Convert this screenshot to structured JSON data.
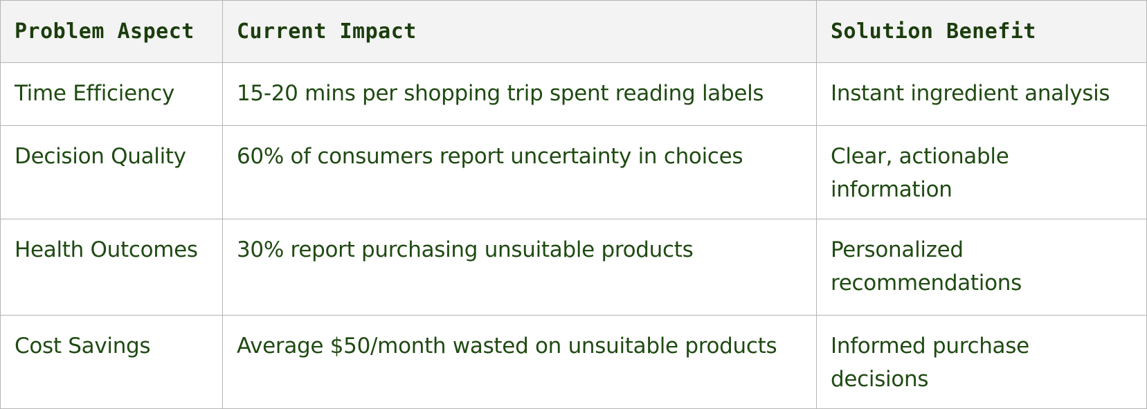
{
  "table": {
    "headers": [
      "Problem Aspect",
      "Current Impact",
      "Solution Benefit"
    ],
    "rows": [
      [
        "Time Efficiency",
        "15-20 mins per shopping trip spent reading labels",
        "Instant ingredient analysis"
      ],
      [
        "Decision Quality",
        "60% of consumers report uncertainty in choices",
        "Clear, actionable information"
      ],
      [
        "Health Outcomes",
        "30% report purchasing unsuitable products",
        "Personalized recommendations"
      ],
      [
        "Cost Savings",
        "Average $50/month wasted on unsuitable products",
        "Informed purchase decisions"
      ]
    ]
  },
  "colors": {
    "text": "#1f4a12",
    "header_bg": "#f3f3f3",
    "border": "#b4b4b4"
  }
}
